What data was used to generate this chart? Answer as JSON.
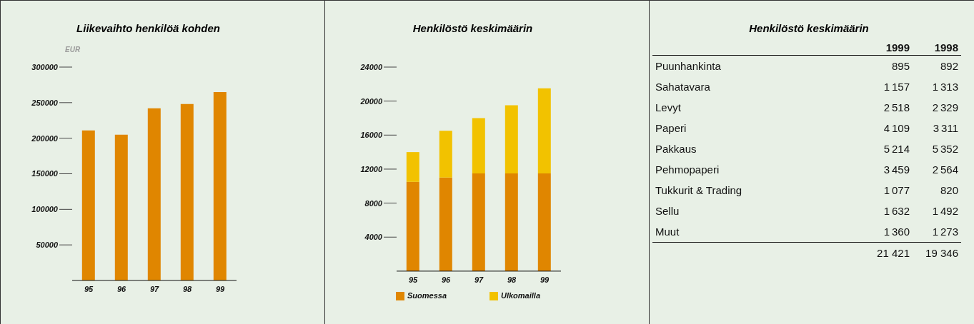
{
  "chart_data": [
    {
      "type": "bar",
      "title": "Liikevaihto henkilöä kohden",
      "ylabel": "EUR",
      "categories": [
        "95",
        "96",
        "97",
        "98",
        "99"
      ],
      "values": [
        211000,
        205000,
        242000,
        248000,
        265000
      ],
      "color": "#e08600",
      "ylim": [
        0,
        300000
      ],
      "yticks": [
        50000,
        100000,
        150000,
        200000,
        250000,
        300000
      ],
      "grid": false,
      "legend": false
    },
    {
      "type": "bar",
      "title": "Henkilöstö keskimäärin",
      "categories": [
        "95",
        "96",
        "97",
        "98",
        "99"
      ],
      "stacked": true,
      "series": [
        {
          "name": "Suomessa",
          "color": "#e08600",
          "values": [
            10500,
            11000,
            11500,
            11500,
            11500
          ]
        },
        {
          "name": "Ulkomailla",
          "color": "#f2c200",
          "values": [
            3500,
            5500,
            6500,
            8000,
            10000
          ]
        }
      ],
      "ylim": [
        0,
        24000
      ],
      "yticks": [
        4000,
        8000,
        12000,
        16000,
        20000,
        24000
      ],
      "grid": false,
      "legend": "bottom"
    },
    {
      "type": "other",
      "title": "Henkilöstö keskimäärin",
      "data_labels": true,
      "categories": [
        "Puunhankinta",
        "Sahatavara",
        "Levyt",
        "Paperi",
        "Pakkaus",
        "Pehmopaperi",
        "Tukkurit & Trading",
        "Sellu",
        "Muut"
      ],
      "totals": [
        "21 421",
        "19 346"
      ],
      "series": [
        {
          "name": "1999",
          "values": [
            895,
            1157,
            2518,
            4109,
            5214,
            3459,
            1077,
            1632,
            1360
          ]
        },
        {
          "name": "1998",
          "values": [
            892,
            1313,
            2329,
            3311,
            5352,
            2564,
            820,
            1492,
            1273
          ]
        }
      ]
    }
  ]
}
